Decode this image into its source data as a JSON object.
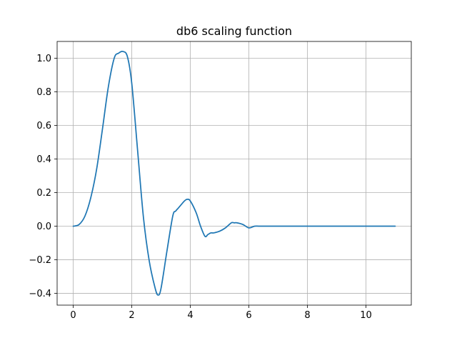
{
  "chart_data": {
    "type": "line",
    "title": "db6 scaling function",
    "xlabel": "",
    "ylabel": "",
    "xlim": [
      -0.55,
      11.55
    ],
    "ylim": [
      -0.47,
      1.1
    ],
    "xticks": [
      0,
      2,
      4,
      6,
      8,
      10
    ],
    "yticks": [
      -0.4,
      -0.2,
      0.0,
      0.2,
      0.4,
      0.6,
      0.8,
      1.0
    ],
    "ytick_labels": [
      "−0.4",
      "−0.2",
      "0.0",
      "0.2",
      "0.4",
      "0.6",
      "0.8",
      "1.0"
    ],
    "grid": true,
    "colors": {
      "series": "#1f77b4"
    },
    "series": [
      {
        "name": "",
        "x": [
          0.0,
          0.2,
          0.4,
          0.6,
          0.8,
          1.0,
          1.2,
          1.4,
          1.55,
          1.7,
          1.85,
          2.0,
          2.2,
          2.4,
          2.6,
          2.8,
          2.9,
          3.0,
          3.2,
          3.4,
          3.5,
          3.6,
          3.8,
          3.9,
          4.0,
          4.2,
          4.35,
          4.5,
          4.6,
          4.7,
          4.8,
          5.0,
          5.2,
          5.4,
          5.5,
          5.6,
          5.8,
          6.0,
          6.2,
          6.4,
          6.6,
          7.0,
          7.5,
          8.0,
          9.0,
          10.0,
          11.0
        ],
        "y": [
          0.0,
          0.01,
          0.06,
          0.17,
          0.34,
          0.58,
          0.83,
          1.0,
          1.03,
          1.04,
          1.01,
          0.85,
          0.45,
          0.05,
          -0.21,
          -0.37,
          -0.41,
          -0.37,
          -0.15,
          0.06,
          0.09,
          0.11,
          0.15,
          0.16,
          0.15,
          0.08,
          0.0,
          -0.06,
          -0.05,
          -0.04,
          -0.04,
          -0.03,
          -0.01,
          0.02,
          0.02,
          0.02,
          0.01,
          -0.01,
          0.0,
          0.0,
          0.0,
          0.0,
          0.0,
          0.0,
          0.0,
          0.0,
          0.0
        ]
      }
    ]
  }
}
